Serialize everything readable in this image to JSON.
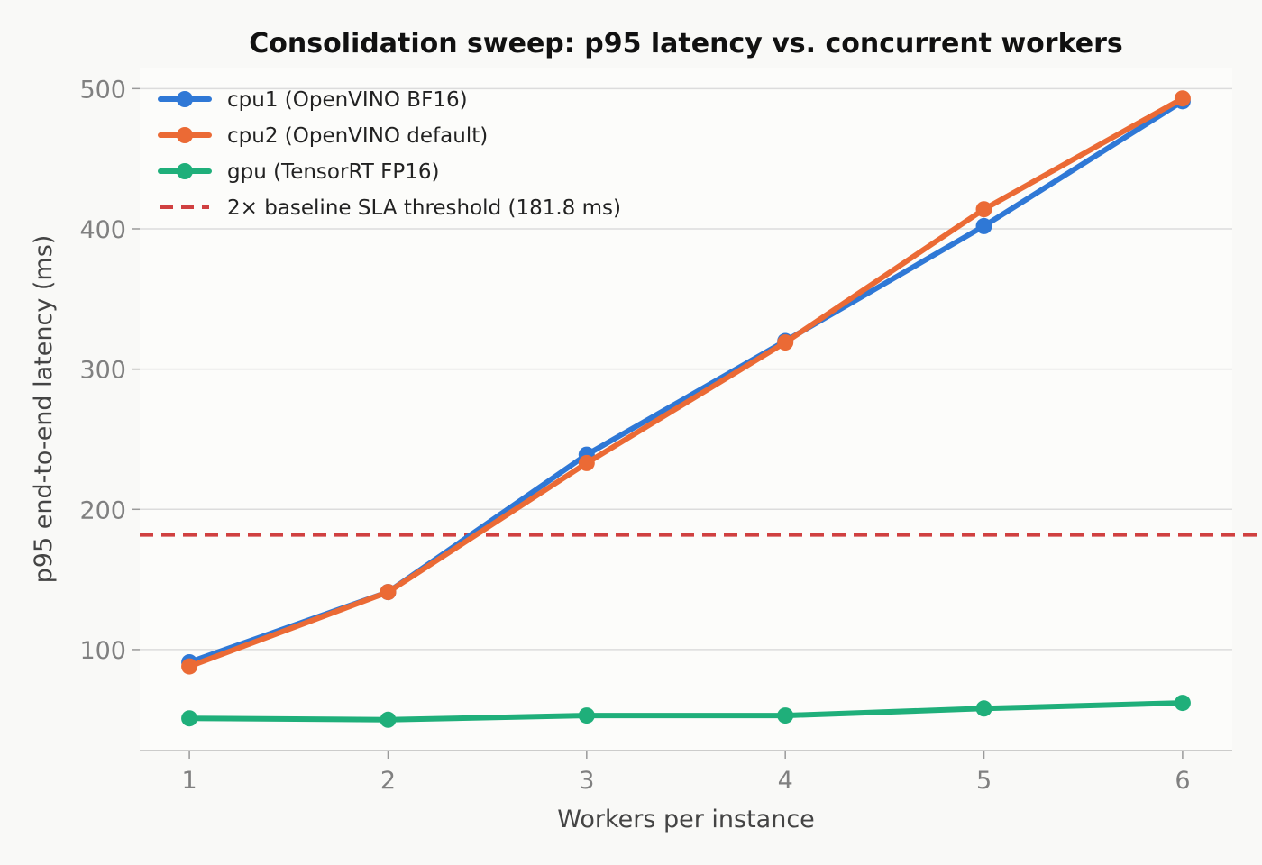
{
  "chart_data": {
    "type": "line",
    "title": "Consolidation sweep: p95 latency vs. concurrent workers",
    "xlabel": "Workers per instance",
    "ylabel": "p95 end-to-end latency (ms)",
    "x": [
      1,
      2,
      3,
      4,
      5,
      6
    ],
    "xlim": [
      0.75,
      6.25
    ],
    "ylim": [
      28,
      515
    ],
    "yticks": [
      100,
      200,
      300,
      400,
      500
    ],
    "grid": "horizontal",
    "legend_position": "top-left",
    "series": [
      {
        "name": "cpu1 (OpenVINO BF16)",
        "color": "#2f78d6",
        "values": [
          91,
          141,
          239,
          320,
          402,
          491
        ]
      },
      {
        "name": "cpu2 (OpenVINO default)",
        "color": "#eb6a35",
        "values": [
          88,
          141,
          233,
          319,
          414,
          493
        ]
      },
      {
        "name": "gpu (TensorRT FP16)",
        "color": "#1faf7a",
        "values": [
          51,
          50,
          53,
          53,
          58,
          62
        ]
      }
    ],
    "threshold": {
      "name": "2× baseline SLA threshold (181.8 ms)",
      "value": 181.8,
      "color": "#d04040",
      "style": "dashed"
    }
  }
}
